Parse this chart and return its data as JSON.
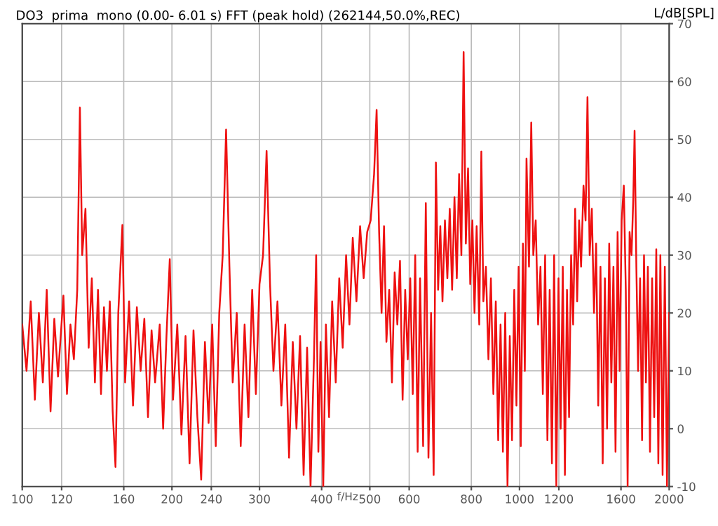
{
  "chart_data": {
    "type": "line",
    "title": "DO3  prima  mono (0.00- 6.01 s) FFT (peak hold) (262144,50.0%,REC)",
    "xlabel": "f/Hz",
    "ylabel": "L/dB[SPL]",
    "log": "x",
    "xlim": [
      100,
      2000
    ],
    "xticks": [
      100,
      120,
      160,
      200,
      240,
      300,
      400,
      500,
      600,
      800,
      1000,
      1200,
      1600,
      2000
    ],
    "ylim": [
      -10,
      70
    ],
    "yticks": [
      -10,
      0,
      10,
      20,
      30,
      40,
      50,
      60,
      70
    ],
    "grid": true,
    "marker": "none",
    "line_style": "solid",
    "series": [
      {
        "color": "#ee1111",
        "x": [
          100,
          102,
          104,
          106,
          108,
          110,
          112,
          114,
          116,
          118,
          121,
          123,
          125,
          127,
          129,
          130.6,
          132,
          134,
          136,
          138,
          140,
          142,
          144,
          146,
          148,
          150,
          152,
          154,
          156,
          159,
          161,
          164,
          167,
          170,
          173,
          176,
          179,
          182,
          185,
          189,
          192,
          195,
          198,
          201,
          205,
          209,
          213,
          217,
          221,
          225,
          229,
          233,
          237,
          241,
          245,
          249,
          253,
          257,
          261,
          265,
          270,
          275,
          280,
          285,
          290,
          295,
          300,
          305,
          310,
          315,
          320,
          326,
          332,
          338,
          344,
          350,
          356,
          362,
          368,
          374,
          380,
          386,
          390,
          394,
          398,
          403,
          408,
          414,
          420,
          427,
          434,
          441,
          448,
          455,
          462,
          470,
          478,
          486,
          494,
          502,
          510,
          516,
          522,
          528,
          534,
          540,
          547,
          554,
          561,
          568,
          575,
          582,
          589,
          596,
          603,
          610,
          617,
          624,
          631,
          640,
          648,
          656,
          664,
          672,
          679,
          686,
          693,
          700,
          708,
          716,
          724,
          732,
          740,
          748,
          756,
          764,
          772,
          780,
          788,
          796,
          804,
          812,
          820,
          830,
          838,
          846,
          856,
          866,
          876,
          886,
          896,
          906,
          916,
          926,
          936,
          946,
          956,
          966,
          976,
          986,
          996,
          1006,
          1016,
          1025,
          1033,
          1045,
          1056,
          1066,
          1078,
          1090,
          1102,
          1114,
          1126,
          1138,
          1150,
          1162,
          1174,
          1186,
          1198,
          1210,
          1222,
          1234,
          1246,
          1258,
          1270,
          1282,
          1294,
          1306,
          1318,
          1330,
          1345,
          1358,
          1370,
          1384,
          1398,
          1412,
          1426,
          1440,
          1455,
          1470,
          1485,
          1500,
          1515,
          1530,
          1545,
          1560,
          1575,
          1590,
          1605,
          1621,
          1636,
          1650,
          1665,
          1680,
          1694,
          1704,
          1718,
          1732,
          1748,
          1764,
          1780,
          1796,
          1812,
          1830,
          1848,
          1866,
          1884,
          1902,
          1920,
          1940,
          1960,
          1980,
          2000
        ],
        "values": [
          18,
          10,
          22,
          5,
          20,
          8,
          24,
          3,
          19,
          9,
          23,
          6,
          18,
          12,
          24,
          55.5,
          30,
          38,
          14,
          26,
          8,
          24,
          6,
          21,
          10,
          22,
          3,
          -6.6,
          20,
          35.2,
          8,
          22,
          4,
          21,
          10,
          19,
          2,
          17,
          8,
          18,
          0,
          16,
          29.3,
          5,
          18,
          -1,
          16,
          -6,
          17,
          2,
          -8.8,
          15,
          1,
          18,
          -3,
          20,
          30,
          51.7,
          28,
          8,
          20,
          -3,
          18,
          2,
          24,
          6,
          25,
          30,
          48,
          25,
          10,
          22,
          4,
          18,
          -5,
          15,
          0,
          16,
          -8,
          14,
          -10,
          12,
          30,
          -4,
          15,
          -10,
          18,
          2,
          22,
          8,
          26,
          14,
          30,
          18,
          33,
          22,
          35,
          26,
          34,
          36,
          44,
          55.1,
          34,
          20,
          35,
          15,
          24,
          8,
          27,
          18,
          29,
          5,
          24,
          12,
          26,
          6,
          30,
          -4,
          26,
          -3,
          39,
          -5,
          20,
          -8,
          46,
          24,
          35,
          22,
          36,
          26,
          38,
          24,
          40,
          26,
          44,
          30,
          65.1,
          32,
          45,
          25,
          36,
          20,
          35,
          18,
          47.9,
          22,
          28,
          12,
          26,
          6,
          22,
          -2,
          18,
          -4,
          20,
          -10,
          16,
          -2,
          24,
          4,
          28,
          -3,
          32,
          10,
          46.7,
          28,
          52.9,
          30,
          36,
          18,
          28,
          6,
          30,
          -2,
          24,
          -6,
          30,
          -10,
          26,
          0,
          28,
          -8,
          24,
          2,
          30,
          18,
          38,
          22,
          36,
          28,
          42,
          36,
          57.3,
          30,
          38,
          20,
          32,
          4,
          28,
          -6,
          26,
          0,
          32,
          8,
          28,
          -4,
          34,
          10,
          36,
          42,
          24,
          -10,
          34,
          30,
          40,
          51.5,
          28,
          10,
          26,
          -2,
          30,
          8,
          28,
          -4,
          26,
          2,
          31,
          -6,
          30,
          -8,
          28,
          -10,
          20
        ]
      }
    ]
  }
}
